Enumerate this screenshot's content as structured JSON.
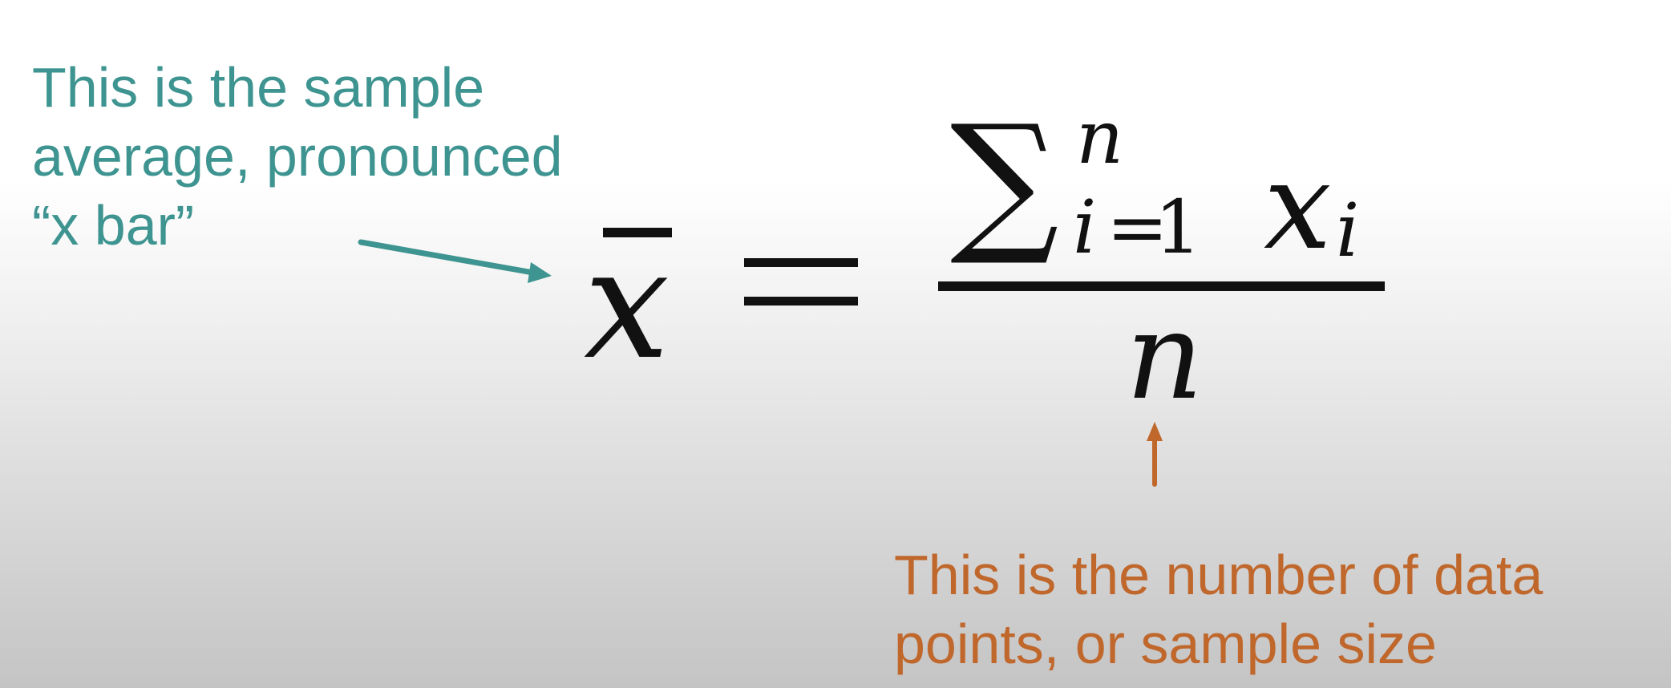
{
  "annotations": {
    "sample_average": {
      "lines": [
        "This is the sample",
        "average, pronounced",
        "“x bar”"
      ],
      "color": "#3e9490"
    },
    "sample_size": {
      "lines": [
        "This is the number of data",
        "points, or sample size"
      ],
      "color": "#c0672c"
    }
  },
  "formula": {
    "lhs": "x",
    "equals": "=",
    "sum_symbol": "∑",
    "upper_limit": "n",
    "index_variable": "i",
    "index_equals": "=",
    "lower_limit": "1",
    "summand": "x",
    "summand_subscript": "i",
    "denominator": "n"
  }
}
